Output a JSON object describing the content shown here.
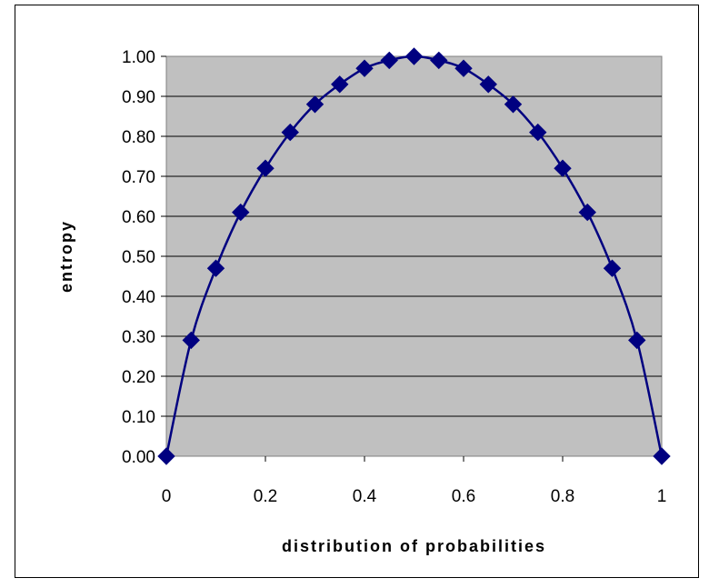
{
  "chart_data": {
    "type": "line",
    "title": "",
    "xlabel": "distribution of probabilities",
    "ylabel": "entropy",
    "xlim": [
      0,
      1
    ],
    "ylim": [
      0,
      1
    ],
    "x_ticks": [
      "0",
      "0.2",
      "0.4",
      "0.6",
      "0.8",
      "1"
    ],
    "y_ticks": [
      "0.00",
      "0.10",
      "0.20",
      "0.30",
      "0.40",
      "0.50",
      "0.60",
      "0.70",
      "0.80",
      "0.90",
      "1.00"
    ],
    "grid": true,
    "legend": "none",
    "plot_background": "#c0c0c0",
    "series": [
      {
        "color": "#000080",
        "marker": "diamond",
        "smooth": true,
        "x": [
          0,
          0.05,
          0.1,
          0.15,
          0.2,
          0.25,
          0.3,
          0.35,
          0.4,
          0.45,
          0.5,
          0.55,
          0.6,
          0.65,
          0.7,
          0.75,
          0.8,
          0.85,
          0.9,
          0.95,
          1
        ],
        "y": [
          0,
          0.29,
          0.47,
          0.61,
          0.72,
          0.81,
          0.88,
          0.93,
          0.97,
          0.99,
          1.0,
          0.99,
          0.97,
          0.93,
          0.88,
          0.81,
          0.72,
          0.61,
          0.47,
          0.29,
          0
        ]
      }
    ]
  }
}
